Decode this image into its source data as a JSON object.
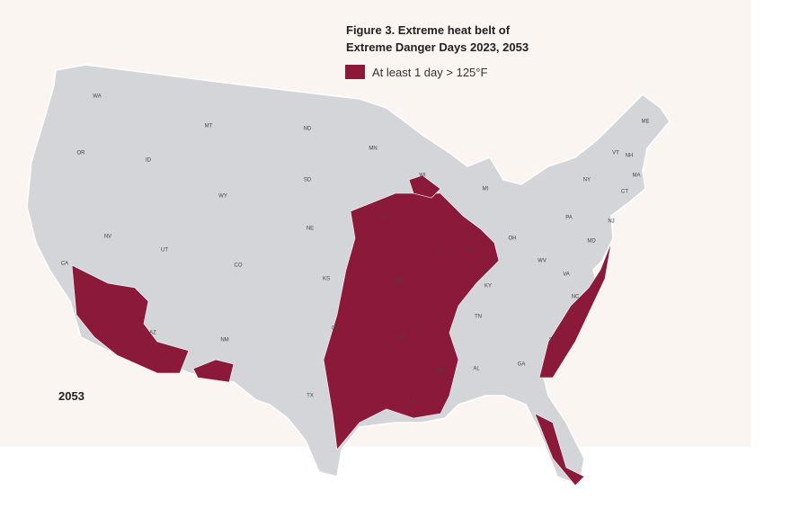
{
  "title": [
    "Figure 3. Extreme heat belt of",
    "Extreme Danger Days 2023, 2053"
  ],
  "legend": {
    "label": "At least 1 day > 125°F",
    "color": "#8b1a3a"
  },
  "year": "2053",
  "state_labels": [
    "WA",
    "OR",
    "CA",
    "NV",
    "ID",
    "MT",
    "WY",
    "UT",
    "AZ",
    "CO",
    "NM",
    "ND",
    "SD",
    "NE",
    "KS",
    "OK",
    "TX",
    "MN",
    "IA",
    "MO",
    "AR",
    "LA",
    "WI",
    "IL",
    "MS",
    "MI",
    "IN",
    "OH",
    "KY",
    "TN",
    "AL",
    "GA",
    "SC",
    "NC",
    "VA",
    "WV",
    "PA",
    "NY",
    "MD",
    "NJ",
    "CT",
    "MA",
    "VT",
    "NH",
    "ME"
  ]
}
